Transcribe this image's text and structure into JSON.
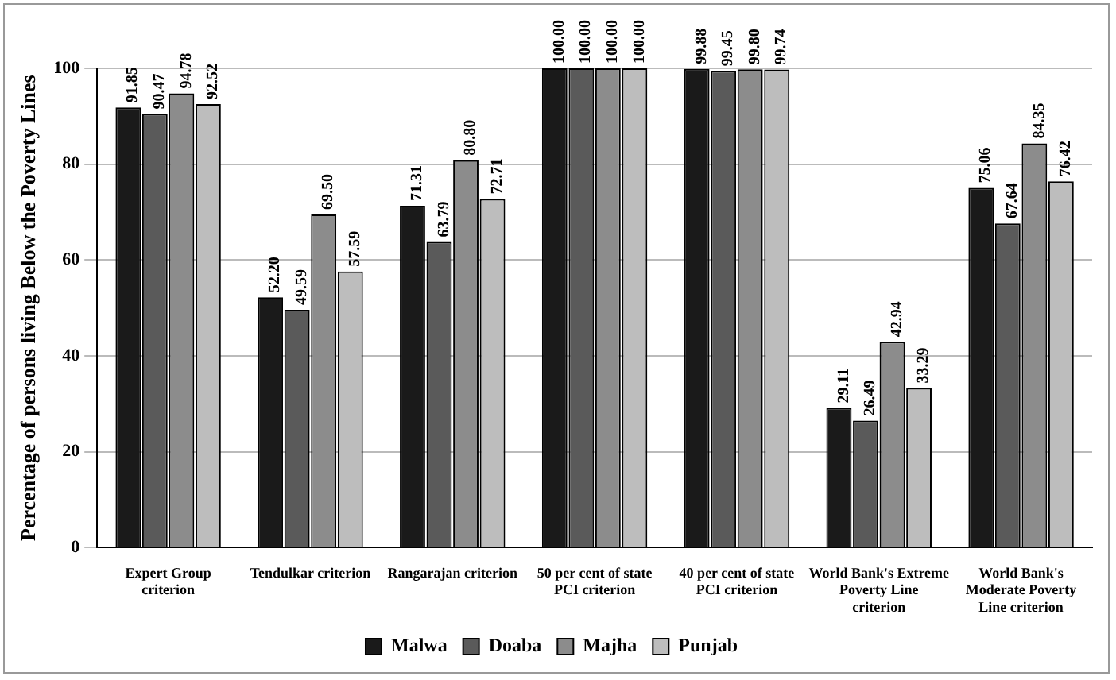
{
  "chart_data": {
    "type": "bar",
    "ylabel": "Percentage of persons living Below the Poverty Lines",
    "categories": [
      "Expert Group criterion",
      "Tendulkar criterion",
      "Rangarajan criterion",
      "50 per cent of state PCI criterion",
      "40 per cent of state PCI criterion",
      "World Bank's Extreme Poverty Line criterion",
      "World Bank's Moderate Poverty Line criterion"
    ],
    "series": [
      {
        "name": "Malwa",
        "color": "#1a1a1a",
        "values": [
          91.85,
          52.2,
          71.31,
          100,
          99.88,
          29.11,
          75.06
        ],
        "value_labels": [
          "91.85",
          "52.20",
          "71.31",
          "100.00",
          "99.88",
          "29.11",
          "75.06"
        ]
      },
      {
        "name": "Doaba",
        "color": "#5a5a5a",
        "values": [
          90.47,
          49.59,
          63.79,
          100,
          99.45,
          26.49,
          67.64
        ],
        "value_labels": [
          "90.47",
          "49.59",
          "63.79",
          "100.00",
          "99.45",
          "26.49",
          "67.64"
        ]
      },
      {
        "name": "Majha",
        "color": "#8c8c8c",
        "values": [
          94.78,
          69.5,
          80.8,
          100,
          99.8,
          42.94,
          84.35
        ],
        "value_labels": [
          "94.78",
          "69.50",
          "80.80",
          "100.00",
          "99.80",
          "42.94",
          "84.35"
        ]
      },
      {
        "name": "Punjab",
        "color": "#bdbdbd",
        "values": [
          92.52,
          57.59,
          72.71,
          100,
          99.74,
          33.29,
          76.42
        ],
        "value_labels": [
          "92.52",
          "57.59",
          "72.71",
          "100.00",
          "99.74",
          "33.29",
          "76.42"
        ]
      }
    ],
    "ylim": [
      0,
      100
    ],
    "yticks": [
      0,
      20,
      40,
      60,
      80,
      100
    ],
    "grid": "y",
    "legend": "bottom"
  }
}
